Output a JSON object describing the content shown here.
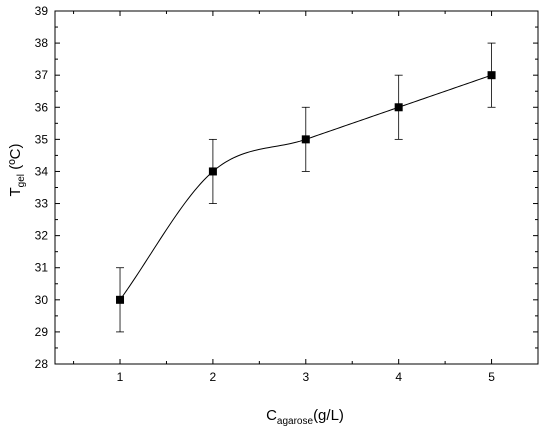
{
  "chart_data": {
    "type": "scatter",
    "x": [
      1,
      2,
      3,
      4,
      5
    ],
    "series": [
      {
        "values": [
          30,
          34,
          35,
          36,
          37
        ],
        "errors": [
          1,
          1,
          1,
          1,
          1
        ],
        "marker": "square",
        "trend_line": "smooth"
      }
    ],
    "xlabel_main": "C",
    "xlabel_sub": "agarose",
    "xlabel_unit": "(g/L)",
    "ylabel_main": "T",
    "ylabel_sub": "gel",
    "ylabel_unit": " (ºC)",
    "xlim": [
      0.3,
      5.5
    ],
    "ylim": [
      28,
      39
    ],
    "xticks": [
      "1",
      "2",
      "3",
      "4",
      "5"
    ],
    "yticks": [
      "28",
      "29",
      "30",
      "31",
      "32",
      "33",
      "34",
      "35",
      "36",
      "37",
      "38",
      "39"
    ],
    "grid": false,
    "legend": "none",
    "colors": {
      "marker": "#000000",
      "line": "#000000",
      "axis": "#000000"
    }
  }
}
